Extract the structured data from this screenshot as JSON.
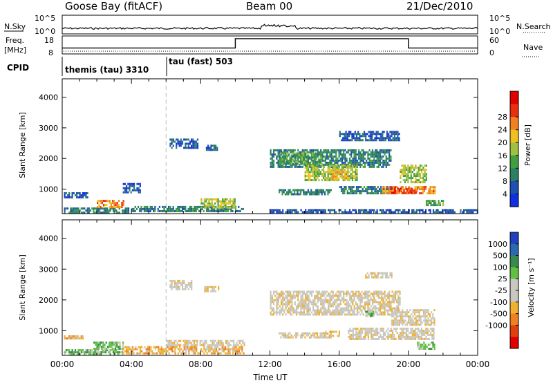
{
  "header": {
    "station": "Goose Bay (fitACF)",
    "beam": "Beam 00",
    "date": "21/Dec/2010"
  },
  "summary": {
    "nsky_label": "N.Sky",
    "nsky_ticks": [
      "10^5",
      "10^0"
    ],
    "nsearch_label": "N.Search",
    "nsearch_ticks": [
      "10^5",
      "10^0"
    ],
    "freq_label": "Freq.",
    "freq_unit": "[MHz]",
    "freq_ticks": [
      "18",
      "8"
    ],
    "nave_label": "Nave",
    "nave_ticks": [
      "60",
      "0"
    ],
    "cpid_label": "CPID",
    "cpid_segments": [
      {
        "label": "themis (tau) 3310",
        "start_hour": 0
      },
      {
        "label": "tau (fast) 503",
        "start_hour": 6
      }
    ],
    "freq_steps": [
      {
        "start_hour": 0,
        "end_hour": 10,
        "level": 0.33
      },
      {
        "start_hour": 10,
        "end_hour": 20,
        "level": 0.85
      },
      {
        "start_hour": 20,
        "end_hour": 24,
        "level": 0.33
      }
    ]
  },
  "colors": {
    "power": [
      "#1030e0",
      "#2050b0",
      "#2a8060",
      "#40a040",
      "#a0c040",
      "#f0c020",
      "#f08020",
      "#e83010",
      "#e00000"
    ],
    "velocity": [
      "#e00000",
      "#e04010",
      "#f08020",
      "#f0b030",
      "#c8c8c0",
      "#c8c8c0",
      "#60c040",
      "#3a8a50",
      "#2a6ab0",
      "#2040c0"
    ],
    "ground_scatter": "#c8c8c0"
  },
  "chart_data": [
    {
      "type": "heatmap",
      "title": "",
      "xlabel": "Time UT",
      "ylabel": "Slant Range [km]",
      "x_ticks": [
        "00:00",
        "04:00",
        "08:00",
        "12:00",
        "16:00",
        "20:00",
        "00:00"
      ],
      "y_ticks": [
        "1000",
        "2000",
        "3000",
        "4000"
      ],
      "xlim": [
        0,
        24
      ],
      "ylim": [
        200,
        4600
      ],
      "colorbar_label": "Power [dB]",
      "colorbar_ticks": [
        "4",
        "8",
        "12",
        "16",
        "20",
        "24",
        "28"
      ],
      "regions": [
        {
          "t0": 0.1,
          "t1": 3.8,
          "r0": 250,
          "r1": 400,
          "level": 2
        },
        {
          "t0": 2.0,
          "t1": 3.5,
          "r0": 400,
          "r1": 650,
          "level": 6
        },
        {
          "t0": 0.1,
          "t1": 1.5,
          "r0": 750,
          "r1": 900,
          "level": 1
        },
        {
          "t0": 3.5,
          "t1": 4.5,
          "r0": 900,
          "r1": 1200,
          "level": 1
        },
        {
          "t0": 6.2,
          "t1": 7.8,
          "r0": 2350,
          "r1": 2650,
          "level": 1
        },
        {
          "t0": 8.3,
          "t1": 9.0,
          "r0": 2300,
          "r1": 2450,
          "level": 1
        },
        {
          "t0": 4.0,
          "t1": 10.5,
          "r0": 250,
          "r1": 450,
          "level": 2
        },
        {
          "t0": 8.0,
          "t1": 10.0,
          "r0": 400,
          "r1": 700,
          "level": 4
        },
        {
          "t0": 12.0,
          "t1": 19.0,
          "r0": 1700,
          "r1": 2300,
          "level": 2
        },
        {
          "t0": 12.5,
          "t1": 15.0,
          "r0": 1800,
          "r1": 2200,
          "level": 3
        },
        {
          "t0": 14.0,
          "t1": 17.0,
          "r0": 1300,
          "r1": 1800,
          "level": 4
        },
        {
          "t0": 15.5,
          "t1": 16.5,
          "r0": 1350,
          "r1": 1650,
          "level": 5
        },
        {
          "t0": 12.5,
          "t1": 15.5,
          "r0": 800,
          "r1": 1000,
          "level": 2
        },
        {
          "t0": 16.0,
          "t1": 19.0,
          "r0": 850,
          "r1": 1100,
          "level": 2
        },
        {
          "t0": 18.5,
          "t1": 21.5,
          "r0": 850,
          "r1": 1100,
          "level": 6
        },
        {
          "t0": 19.0,
          "t1": 20.5,
          "r0": 900,
          "r1": 1050,
          "level": 7
        },
        {
          "t0": 19.5,
          "t1": 21.0,
          "r0": 1200,
          "r1": 1800,
          "level": 4
        },
        {
          "t0": 16.0,
          "t1": 19.5,
          "r0": 2600,
          "r1": 2900,
          "level": 1
        },
        {
          "t0": 12.0,
          "t1": 24.0,
          "r0": 250,
          "r1": 350,
          "level": 1
        },
        {
          "t0": 21.0,
          "t1": 22.0,
          "r0": 450,
          "r1": 650,
          "level": 3
        }
      ]
    },
    {
      "type": "heatmap",
      "title": "",
      "xlabel": "Time UT",
      "ylabel": "Slant Range [km]",
      "x_ticks": [
        "00:00",
        "04:00",
        "08:00",
        "12:00",
        "16:00",
        "20:00",
        "00:00"
      ],
      "y_ticks": [
        "1000",
        "2000",
        "3000",
        "4000"
      ],
      "xlim": [
        0,
        24
      ],
      "ylim": [
        200,
        4600
      ],
      "colorbar_label": "Velocity [m s⁻¹]",
      "colorbar_ticks": [
        "1000",
        "500",
        "100",
        "25",
        "-25",
        "-100",
        "-500",
        "-1000"
      ],
      "regions": [
        {
          "t0": 0.1,
          "t1": 3.5,
          "r0": 250,
          "r1": 400,
          "level": 6
        },
        {
          "t0": 1.8,
          "t1": 3.5,
          "r0": 400,
          "r1": 650,
          "level": 6
        },
        {
          "t0": 0.1,
          "t1": 1.2,
          "r0": 750,
          "r1": 850,
          "level": 3
        },
        {
          "t0": 3.5,
          "t1": 10.5,
          "r0": 250,
          "r1": 500,
          "level": 3
        },
        {
          "t0": 6.0,
          "t1": 10.5,
          "r0": 500,
          "r1": 700,
          "level": 4
        },
        {
          "t0": 6.2,
          "t1": 7.5,
          "r0": 2350,
          "r1": 2650,
          "level": 4
        },
        {
          "t0": 8.2,
          "t1": 9.0,
          "r0": 2300,
          "r1": 2450,
          "level": 4
        },
        {
          "t0": 12.0,
          "t1": 19.5,
          "r0": 1500,
          "r1": 2300,
          "level": 4
        },
        {
          "t0": 16.5,
          "t1": 21.5,
          "r0": 700,
          "r1": 1100,
          "level": 4
        },
        {
          "t0": 19.0,
          "t1": 21.5,
          "r0": 1200,
          "r1": 1700,
          "level": 4
        },
        {
          "t0": 12.5,
          "t1": 15.5,
          "r0": 750,
          "r1": 950,
          "level": 4
        },
        {
          "t0": 15.0,
          "t1": 16.0,
          "r0": 850,
          "r1": 1000,
          "level": 3
        },
        {
          "t0": 17.5,
          "t1": 18.0,
          "r0": 1500,
          "r1": 1650,
          "level": 6
        },
        {
          "t0": 20.5,
          "t1": 21.5,
          "r0": 400,
          "r1": 650,
          "level": 6
        },
        {
          "t0": 17.5,
          "t1": 19.0,
          "r0": 2700,
          "r1": 2900,
          "level": 4
        }
      ]
    }
  ]
}
